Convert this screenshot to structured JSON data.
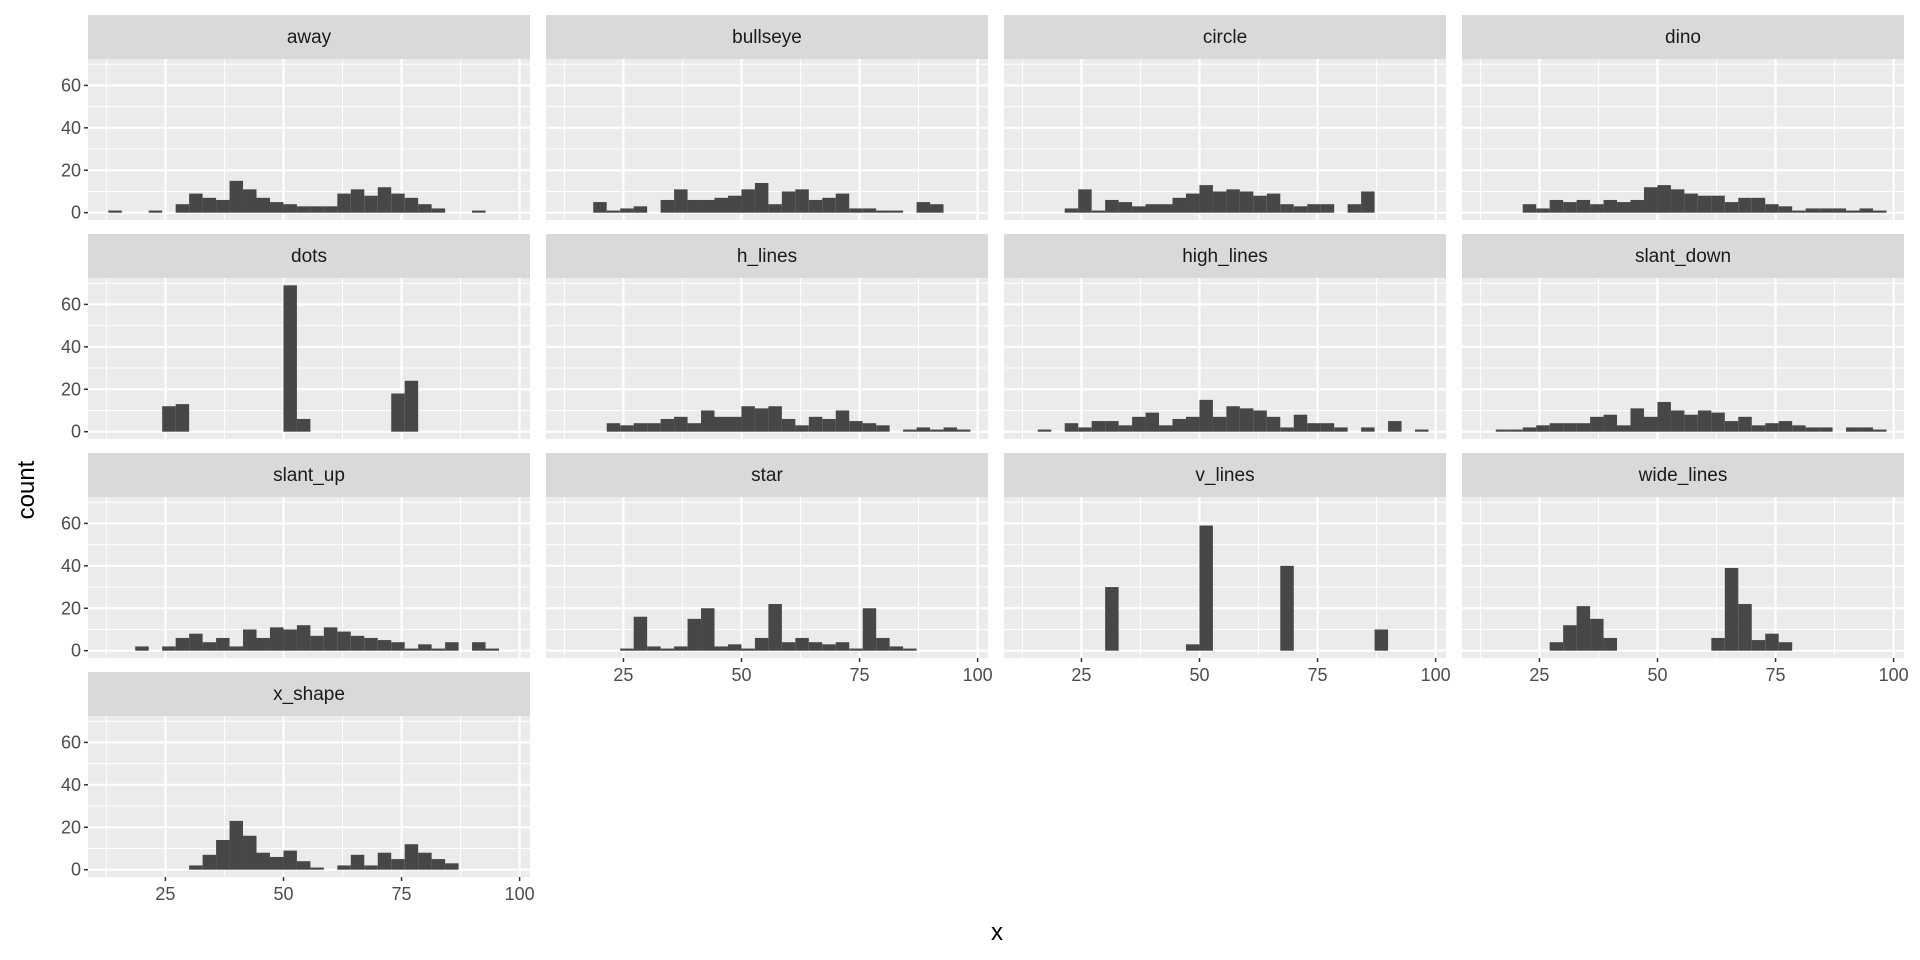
{
  "chart_data": {
    "type": "bar",
    "subtype": "faceted histogram",
    "xlabel": "x",
    "ylabel": "count",
    "xlim": [
      8.6,
      102.2
    ],
    "ylim": [
      0,
      72
    ],
    "x_ticks": [
      "25",
      "50",
      "75",
      "100"
    ],
    "x_tick_values": [
      25,
      50,
      75,
      100
    ],
    "y_ticks": [
      "0",
      "20",
      "40",
      "60"
    ],
    "y_tick_values": [
      0,
      20,
      40,
      60
    ],
    "bin_start": 12.9,
    "binwidth": 2.853,
    "grid": true,
    "bar_color": "#474747",
    "panels": [
      {
        "name": "away",
        "counts": [
          1,
          0,
          0,
          1,
          0,
          4,
          9,
          7,
          6,
          15,
          11,
          7,
          5,
          4,
          3,
          3,
          3,
          9,
          11,
          8,
          12,
          9,
          7,
          4,
          2,
          0,
          0,
          1,
          0,
          0
        ]
      },
      {
        "name": "bullseye",
        "counts": [
          0,
          0,
          5,
          1,
          2,
          3,
          0,
          6,
          11,
          6,
          6,
          7,
          8,
          11,
          14,
          4,
          10,
          11,
          6,
          7,
          9,
          2,
          2,
          1,
          1,
          0,
          5,
          4,
          0,
          0
        ]
      },
      {
        "name": "circle",
        "counts": [
          0,
          0,
          0,
          2,
          11,
          1,
          6,
          5,
          3,
          4,
          4,
          7,
          9,
          13,
          10,
          11,
          10,
          8,
          9,
          4,
          3,
          4,
          4,
          0,
          4,
          10,
          0,
          0,
          0,
          0
        ]
      },
      {
        "name": "dino",
        "counts": [
          0,
          0,
          0,
          4,
          2,
          6,
          5,
          6,
          4,
          6,
          5,
          6,
          12,
          13,
          11,
          9,
          8,
          8,
          5,
          7,
          7,
          4,
          3,
          1,
          2,
          2,
          2,
          1,
          2,
          1
        ]
      },
      {
        "name": "dots",
        "counts": [
          0,
          0,
          0,
          0,
          12,
          13,
          0,
          0,
          0,
          0,
          0,
          0,
          0,
          69,
          6,
          0,
          0,
          0,
          0,
          0,
          0,
          18,
          24,
          0,
          0,
          0,
          0,
          0,
          0,
          0
        ]
      },
      {
        "name": "h_lines",
        "counts": [
          0,
          0,
          0,
          4,
          3,
          4,
          4,
          6,
          7,
          4,
          10,
          7,
          7,
          12,
          11,
          12,
          6,
          3,
          7,
          6,
          10,
          5,
          4,
          3,
          0,
          1,
          2,
          1,
          2,
          1
        ]
      },
      {
        "name": "high_lines",
        "counts": [
          0,
          1,
          0,
          4,
          2,
          5,
          5,
          3,
          7,
          9,
          3,
          6,
          7,
          15,
          7,
          12,
          11,
          10,
          7,
          2,
          8,
          4,
          4,
          2,
          0,
          2,
          0,
          5,
          0,
          1
        ]
      },
      {
        "name": "slant_down",
        "counts": [
          0,
          1,
          1,
          2,
          3,
          4,
          4,
          4,
          7,
          8,
          3,
          11,
          7,
          14,
          10,
          8,
          10,
          9,
          5,
          7,
          3,
          4,
          5,
          3,
          2,
          2,
          0,
          2,
          2,
          1
        ]
      },
      {
        "name": "slant_up",
        "counts": [
          0,
          0,
          2,
          0,
          2,
          6,
          8,
          4,
          6,
          2,
          10,
          6,
          11,
          10,
          12,
          7,
          11,
          9,
          7,
          6,
          5,
          4,
          1,
          3,
          1,
          4,
          0,
          4,
          1,
          0
        ]
      },
      {
        "name": "star",
        "counts": [
          0,
          0,
          0,
          0,
          1,
          16,
          2,
          1,
          2,
          15,
          20,
          2,
          3,
          1,
          6,
          22,
          4,
          6,
          4,
          3,
          4,
          1,
          20,
          6,
          2,
          1,
          0,
          0,
          0,
          0
        ]
      },
      {
        "name": "v_lines",
        "counts": [
          0,
          0,
          0,
          0,
          0,
          0,
          30,
          0,
          0,
          0,
          0,
          0,
          3,
          59,
          0,
          0,
          0,
          0,
          0,
          40,
          0,
          0,
          0,
          0,
          0,
          0,
          10,
          0,
          0,
          0
        ]
      },
      {
        "name": "wide_lines",
        "counts": [
          0,
          0,
          0,
          0,
          0,
          4,
          12,
          21,
          15,
          6,
          0,
          0,
          0,
          0,
          0,
          0,
          0,
          6,
          39,
          22,
          5,
          8,
          4,
          0,
          0,
          0,
          0,
          0,
          0,
          0
        ]
      },
      {
        "name": "x_shape",
        "counts": [
          0,
          0,
          0,
          0,
          0,
          0,
          2,
          7,
          14,
          23,
          16,
          8,
          6,
          9,
          4,
          1,
          0,
          2,
          7,
          2,
          8,
          5,
          12,
          8,
          5,
          3,
          0,
          0,
          0,
          0
        ]
      }
    ]
  }
}
